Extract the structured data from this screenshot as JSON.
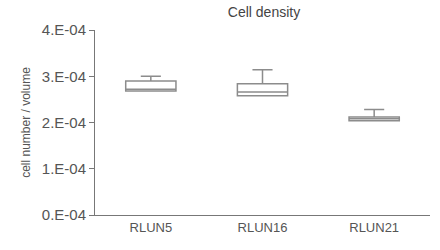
{
  "chart_data": {
    "type": "box",
    "title": "Cell density",
    "y_label": "cell number / volume",
    "categories": [
      "RLUN5",
      "RLUN16",
      "RLUN21"
    ],
    "lowerfence": [
      0.000268,
      0.000258,
      0.000204
    ],
    "q1": [
      0.000268,
      0.000258,
      0.000204
    ],
    "median": [
      0.000272,
      0.000266,
      0.000208
    ],
    "q3": [
      0.00029,
      0.000284,
      0.000212
    ],
    "upperfence": [
      0.0003,
      0.000314,
      0.000228
    ],
    "color": "#8c8c8c",
    "ylim": [
      0,
      0.0004
    ],
    "yticks": [
      {
        "value": 0,
        "label": "0.E-04"
      },
      {
        "value": 0.0001,
        "label": "1.E-04"
      },
      {
        "value": 0.0002,
        "label": "2.E-04"
      },
      {
        "value": 0.0003,
        "label": "3.E-04"
      },
      {
        "value": 0.0004,
        "label": "4.E-04"
      }
    ],
    "grid": false
  }
}
